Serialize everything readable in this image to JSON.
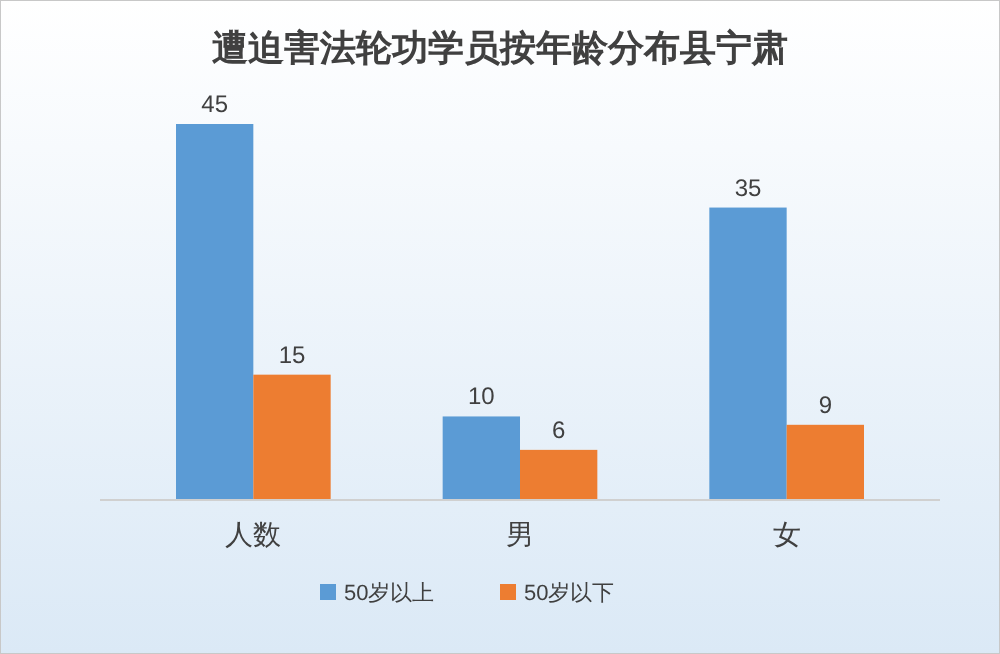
{
  "chart_data": {
    "type": "bar",
    "title": "遭迫害法轮功学员按年龄分布县宁肃",
    "categories": [
      "人数",
      "男",
      "女"
    ],
    "series": [
      {
        "name": "50岁以上",
        "color": "#5b9bd5",
        "values": [
          45,
          10,
          35
        ]
      },
      {
        "name": "50岁以下",
        "color": "#ed7d31",
        "values": [
          15,
          6,
          9
        ]
      }
    ],
    "data_labels": true,
    "legend": "bottom"
  }
}
